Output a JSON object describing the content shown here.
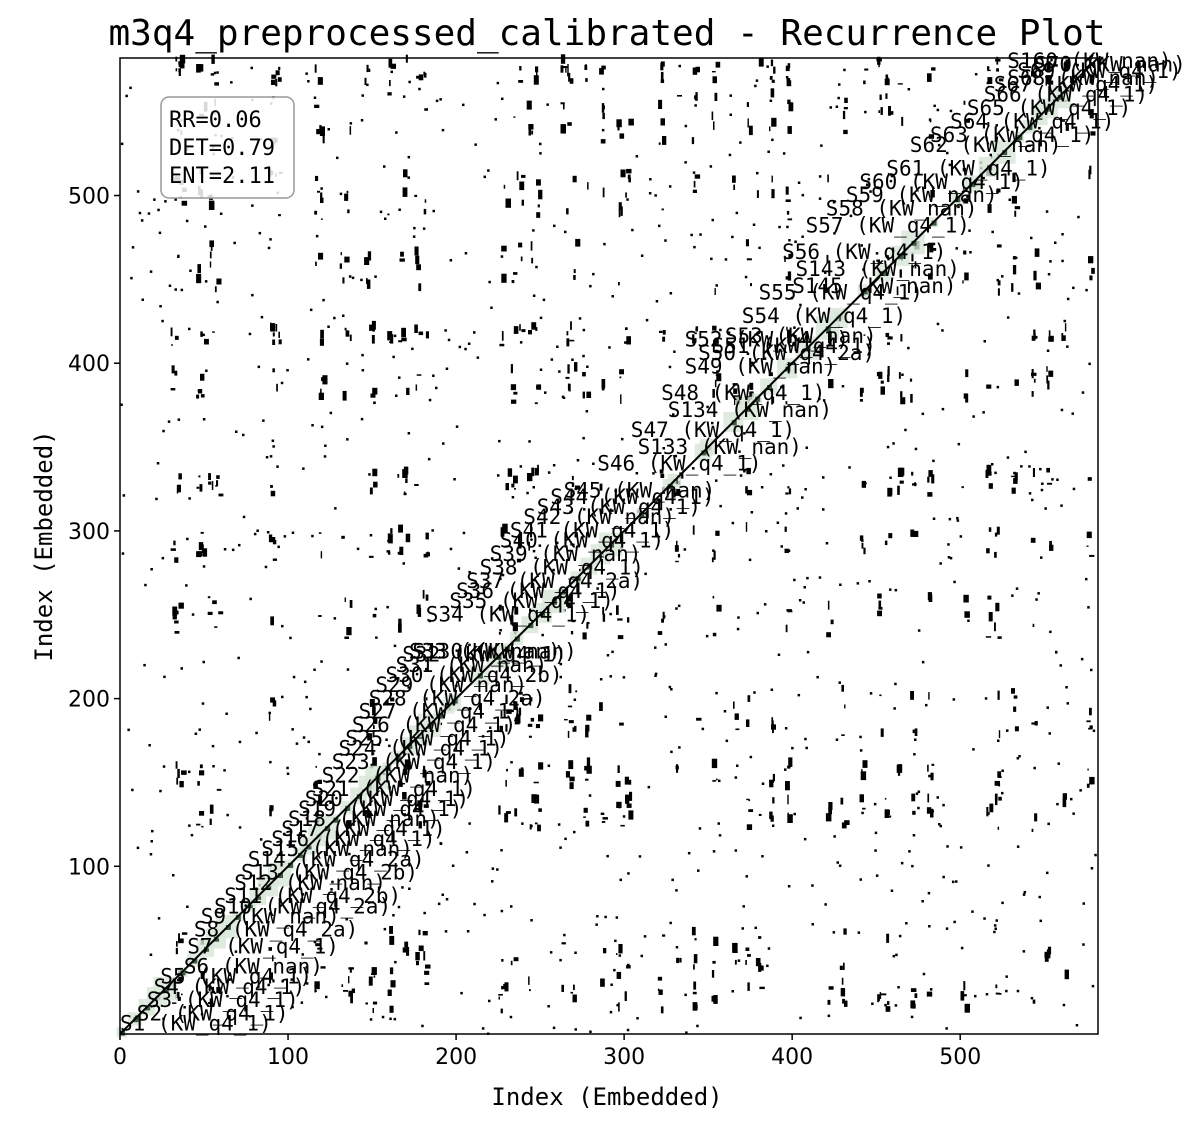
{
  "chart_data": {
    "type": "heatmap",
    "title": "m3q4_preprocessed_calibrated - Recurrence Plot",
    "xlabel": "Index (Embedded)",
    "ylabel": "Index (Embedded)",
    "xlim": [
      0,
      582
    ],
    "ylim": [
      0,
      582
    ],
    "x_ticks": [
      0,
      100,
      200,
      300,
      400,
      500
    ],
    "y_ticks": [
      100,
      200,
      300,
      400,
      500
    ],
    "grid": false,
    "colors": {
      "recurrence": "#000000",
      "segment_shade": "#d8e6d8",
      "segment_core": "#3c5a40",
      "background": "#ffffff"
    },
    "stats": {
      "rr": "RR=0.06",
      "det": "DET=0.79",
      "ent": "ENT=2.11"
    },
    "segment_labels": [
      {
        "text": "S1 (KW_q4_1)",
        "x": 0,
        "y": 2
      },
      {
        "text": "S2 (KW_q4_1)",
        "x": 10,
        "y": 8
      },
      {
        "text": "S3 (KW_q4_1)",
        "x": 16,
        "y": 16
      },
      {
        "text": "S4 (KW_q4_1)",
        "x": 20,
        "y": 24
      },
      {
        "text": "S5 (KW_q4_1)",
        "x": 24,
        "y": 30
      },
      {
        "text": "S6 (KW_nan)",
        "x": 38,
        "y": 36
      },
      {
        "text": "S7 (KW_q4_1)",
        "x": 40,
        "y": 48
      },
      {
        "text": "S8 (KW_q4_2a)",
        "x": 44,
        "y": 58
      },
      {
        "text": "S9 (KW_nan)",
        "x": 48,
        "y": 66
      },
      {
        "text": "S10 (KW_q4_2a)",
        "x": 56,
        "y": 72
      },
      {
        "text": "S11 (KW_q4_2b)",
        "x": 62,
        "y": 78
      },
      {
        "text": "S12 (KW_nan)",
        "x": 68,
        "y": 86
      },
      {
        "text": "S13 (KW_q4_2b)",
        "x": 72,
        "y": 92
      },
      {
        "text": "S14 (KW_q4_2a)",
        "x": 76,
        "y": 100
      },
      {
        "text": "S15 (KW_nan)",
        "x": 84,
        "y": 106
      },
      {
        "text": "S16 (KW_q4_1)",
        "x": 90,
        "y": 112
      },
      {
        "text": "S17 (KW_q4_1)",
        "x": 96,
        "y": 118
      },
      {
        "text": "S18 (KW_nan)",
        "x": 100,
        "y": 124
      },
      {
        "text": "S19 (KW_q4_1)",
        "x": 106,
        "y": 130
      },
      {
        "text": "S20 (KW_q4_1)",
        "x": 110,
        "y": 136
      },
      {
        "text": "S21 (KW_q4_1)",
        "x": 114,
        "y": 142
      },
      {
        "text": "S22 (KW_nan)",
        "x": 120,
        "y": 150
      },
      {
        "text": "S23 (KW_q4_1)",
        "x": 126,
        "y": 158
      },
      {
        "text": "S24 (KW_q4_1)",
        "x": 130,
        "y": 166
      },
      {
        "text": "S25 (KW_q4_1)",
        "x": 134,
        "y": 172
      },
      {
        "text": "S26 (KW_q4_1)",
        "x": 138,
        "y": 180
      },
      {
        "text": "S27 (KW_q4_1)",
        "x": 142,
        "y": 188
      },
      {
        "text": "S28 (KW_q4_2a)",
        "x": 148,
        "y": 196
      },
      {
        "text": "S29 (KW_nan)",
        "x": 152,
        "y": 204
      },
      {
        "text": "S30 (KW_q4_2b)",
        "x": 158,
        "y": 210
      },
      {
        "text": "S31 (KW_nan)",
        "x": 164,
        "y": 216
      },
      {
        "text": "S32 (KW_q4_1)",
        "x": 168,
        "y": 222
      },
      {
        "text": "S33 (KW_nan)",
        "x": 172,
        "y": 224
      },
      {
        "text": "S34 (KW_q4_1)",
        "x": 182,
        "y": 246
      },
      {
        "text": "S35 (KW_q4_1)",
        "x": 196,
        "y": 254
      },
      {
        "text": "S36 (KW_q4_1)",
        "x": 200,
        "y": 260
      },
      {
        "text": "S37 (KW_q4_2a)",
        "x": 206,
        "y": 266
      },
      {
        "text": "S38 (KW_q4_1)",
        "x": 214,
        "y": 274
      },
      {
        "text": "S39 (KW_nan)",
        "x": 220,
        "y": 282
      },
      {
        "text": "S40 (KW_q4_1)",
        "x": 226,
        "y": 290
      },
      {
        "text": "S41 (KW_q4_1)",
        "x": 232,
        "y": 296
      },
      {
        "text": "S42 (KW_nan)",
        "x": 240,
        "y": 304
      },
      {
        "text": "S43 (KW_q4_1)",
        "x": 248,
        "y": 310
      },
      {
        "text": "S44 (KW_q4_1)",
        "x": 256,
        "y": 316
      },
      {
        "text": "S45 (KW_nan)",
        "x": 264,
        "y": 320
      },
      {
        "text": "S46 (KW_q4_1)",
        "x": 284,
        "y": 336
      },
      {
        "text": "S47 (KW_q4_1)",
        "x": 304,
        "y": 356
      },
      {
        "text": "S48 (KW_q4_1)",
        "x": 322,
        "y": 378
      },
      {
        "text": "S49 (KW_nan)",
        "x": 336,
        "y": 394
      },
      {
        "text": "S50 (KW_q4_2a)",
        "x": 344,
        "y": 402
      },
      {
        "text": "S51 (KW_q4_1)",
        "x": 352,
        "y": 406
      },
      {
        "text": "S52 (KW_q4_1)",
        "x": 336,
        "y": 410
      },
      {
        "text": "S53 (KW_nan)",
        "x": 360,
        "y": 412
      },
      {
        "text": "S54 (KW_q4_1)",
        "x": 370,
        "y": 424
      },
      {
        "text": "S55 (KW_q4_1)",
        "x": 380,
        "y": 438
      },
      {
        "text": "S56 (KW_q4_1)",
        "x": 394,
        "y": 462
      },
      {
        "text": "S57 (KW_q4_1)",
        "x": 408,
        "y": 478
      },
      {
        "text": "S58 (KW_nan)",
        "x": 420,
        "y": 488
      },
      {
        "text": "S59 (KW_nan)",
        "x": 432,
        "y": 496
      },
      {
        "text": "S60 (KW_q4_1)",
        "x": 440,
        "y": 504
      },
      {
        "text": "S61 (KW_q4_1)",
        "x": 456,
        "y": 512
      },
      {
        "text": "S62 (KW_nan)",
        "x": 470,
        "y": 526
      },
      {
        "text": "S63 (KW_q4_1)",
        "x": 482,
        "y": 532
      },
      {
        "text": "S64 (KW_q4_1)",
        "x": 494,
        "y": 540
      },
      {
        "text": "S65 (KW_q4_1)",
        "x": 504,
        "y": 548
      },
      {
        "text": "S66 (KW_q4_1)",
        "x": 514,
        "y": 556
      },
      {
        "text": "S67 (KW_q4_1)",
        "x": 520,
        "y": 562
      },
      {
        "text": "S68 (KW_nan)",
        "x": 528,
        "y": 566
      },
      {
        "text": "S69 (KW_q4_1)",
        "x": 534,
        "y": 570
      },
      {
        "text": "S70 (KW_nan)",
        "x": 544,
        "y": 574
      },
      {
        "text": "S130 (KW_nan)",
        "x": 174,
        "y": 224
      },
      {
        "text": "S133 (KW_nan)",
        "x": 308,
        "y": 346
      },
      {
        "text": "S134 (KW_nan)",
        "x": 326,
        "y": 368
      },
      {
        "text": "S143 (KW_nan)",
        "x": 402,
        "y": 452
      },
      {
        "text": "S145 (KW_nan)",
        "x": 400,
        "y": 442
      },
      {
        "text": "S160 (KW_nan)",
        "x": 528,
        "y": 576
      }
    ]
  }
}
